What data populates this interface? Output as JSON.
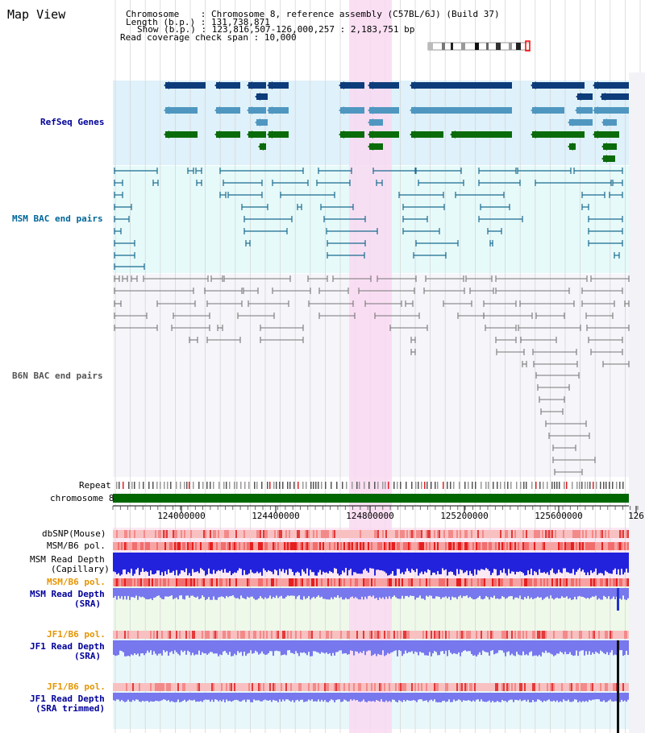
{
  "page": {
    "title": "Map View",
    "info": {
      "chromosome_key": "Chromosome",
      "chromosome_val": "Chromosome 8, reference assembly (C57BL/6J) (Build 37)",
      "length_key": "Length (b.p.)",
      "length_val": "131,738,871",
      "show_key": "Show (b.p.)",
      "show_val": "123,816,507-126,000,257 : 2,183,751 bp",
      "coverage_key": "Read coverage check span",
      "coverage_val": "10,000"
    }
  },
  "tracks": {
    "refseq": "RefSeq Genes",
    "msm_bac": "MSM BAC end pairs",
    "b6n_bac": "B6N BAC end pairs",
    "repeat": "Repeat",
    "chromosome": "chromosome 8",
    "dbsnp": "dbSNP(Mouse)",
    "msm_b6_pol": "MSM/B6 pol.",
    "msm_read_depth_cap_1": "MSM Read Depth",
    "msm_read_depth_cap_2": "(Capillary)",
    "msm_b6_pol_2": "MSM/B6 pol.",
    "msm_read_depth_sra_1": "MSM Read Depth",
    "msm_read_depth_sra_2": "(SRA)",
    "jf1_b6_pol": "JF1/B6 pol.",
    "jf1_read_depth_1": "JF1 Read Depth",
    "jf1_read_depth_2": "(SRA)",
    "jf1_b6_pol_2": "JF1/B6 pol.",
    "jf1_read_depth_trim_1": "JF1 Read Depth",
    "jf1_read_depth_trim_2": "(SRA trimmed)"
  },
  "axis": {
    "ticks": [
      "124000000",
      "124400000",
      "124800000",
      "125200000",
      "125600000",
      "126"
    ]
  },
  "colors": {
    "refseq_bg": "#dff1fa",
    "msm_bg": "#e6fafa",
    "b6n_bg": "#f5f5fa",
    "highlight": "#f9d9f1",
    "gene_dark": "#0d3c7a",
    "gene_mid": "#4f97c0",
    "gene_green": "#0a6b0a",
    "msm_line": "#1a6b8f",
    "b6n_line": "#777777",
    "chrom_green": "#006600",
    "pol_red": "#ee3333",
    "depth_blue": "#2222dd",
    "depth_light": "#7777ee"
  }
}
